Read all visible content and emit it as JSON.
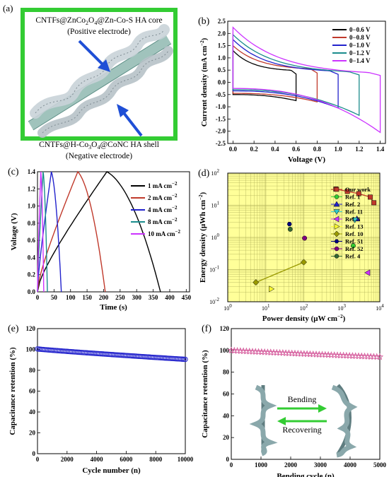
{
  "panels": {
    "a": {
      "label": "(a)",
      "top_text_1": "CNTFs@ZnCo",
      "top_sub_1": "2",
      "top_text_2": "O",
      "top_sub_2": "4",
      "top_text_3": "@Zn-Co-S HA core",
      "top_text_4": "(Positive electrode)",
      "bottom_text_1": "CNTFs@H-Co",
      "bottom_sub_1": "3",
      "bottom_text_2": "O",
      "bottom_sub_2": "4",
      "bottom_text_3": "@CoNC HA shell",
      "bottom_text_4": "(Negative electrode)",
      "colors": {
        "border": "#33cc33",
        "arrow": "#1f4fd6",
        "fiber": "#8fb8b0",
        "shell": "#c9d3d8"
      }
    },
    "f_inset": {
      "bending": "Bending",
      "recovering": "Recovering",
      "arrow_color": "#33cc33"
    }
  },
  "chart_data": [
    {
      "id": "b",
      "panel_label": "(b)",
      "type": "line",
      "xlabel": "Voltage (V)",
      "ylabel": "Current density (mA cm",
      "ylabel_sup": "−2",
      "ylabel_end": ")",
      "xlim": [
        -0.05,
        1.45
      ],
      "ylim": [
        -2.5,
        2.5
      ],
      "xticks": [
        "0.0",
        "0.2",
        "0.4",
        "0.6",
        "0.8",
        "1.0",
        "1.2",
        "1.4"
      ],
      "yticks": [
        "2.5",
        "2.0",
        "1.5",
        "1.0",
        "0.5",
        "0.0",
        "-0.5",
        "-1.0",
        "-1.5",
        "-2.0",
        "-2.5"
      ],
      "series": [
        {
          "name": "0−0.6 V",
          "color": "#000000",
          "vmax": 0.6,
          "top0": 1.3,
          "topEnd": 0.45,
          "bot0": -0.5,
          "botEnd": -0.75
        },
        {
          "name": "0−0.8 V",
          "color": "#c0392b",
          "vmax": 0.8,
          "top0": 1.5,
          "topEnd": 0.5,
          "bot0": -0.45,
          "botEnd": -0.8
        },
        {
          "name": "0−1.0 V",
          "color": "#2222cc",
          "vmax": 1.0,
          "top0": 1.75,
          "topEnd": 0.4,
          "bot0": -0.35,
          "botEnd": -1.05
        },
        {
          "name": "0−1.2 V",
          "color": "#1a8c8c",
          "vmax": 1.2,
          "top0": 1.95,
          "topEnd": 0.35,
          "bot0": -0.3,
          "botEnd": -1.35
        },
        {
          "name": "0−1.4 V",
          "color": "#cc33ff",
          "vmax": 1.4,
          "top0": 2.25,
          "topEnd": 0.3,
          "bot0": -0.25,
          "botEnd": -2.05
        }
      ]
    },
    {
      "id": "c",
      "panel_label": "(c)",
      "type": "line",
      "xlabel": "Time (s)",
      "ylabel": "Voltage (V)",
      "xlim": [
        0,
        460
      ],
      "ylim": [
        0,
        1.4
      ],
      "xticks": [
        "0",
        "50",
        "100",
        "150",
        "200",
        "250",
        "300",
        "350",
        "400",
        "450"
      ],
      "yticks": [
        "0.0",
        "0.2",
        "0.4",
        "0.6",
        "0.8",
        "1.0",
        "1.2",
        "1.4"
      ],
      "series": [
        {
          "name": "1 mA cm",
          "sup": "−2",
          "color": "#000000",
          "t_peak": 210,
          "t_end": 372
        },
        {
          "name": "2 mA cm",
          "sup": "−2",
          "color": "#c0392b",
          "t_peak": 122,
          "t_end": 205
        },
        {
          "name": "4 mA cm",
          "sup": "−2",
          "color": "#2222cc",
          "t_peak": 42,
          "t_end": 72
        },
        {
          "name": "8 mA cm",
          "sup": "−2",
          "color": "#1a8c8c",
          "t_peak": 17,
          "t_end": 30
        },
        {
          "name": "10 mA cm",
          "sup": "−2",
          "color": "#cc33ff",
          "t_peak": 10,
          "t_end": 19
        }
      ]
    },
    {
      "id": "d",
      "panel_label": "(d)",
      "type": "scatter",
      "xscale": "log",
      "yscale": "log",
      "xlabel": "Power density (μW cm",
      "xlabel_sup": "−2",
      "xlabel_end": ")",
      "ylabel": "Energy density (μWh cm",
      "ylabel_sup": "−2",
      "ylabel_end": ")",
      "xlim_exp": [
        0,
        4
      ],
      "ylim_exp": [
        -2,
        2
      ],
      "xticks": [
        {
          "b": "10",
          "e": "0"
        },
        {
          "b": "10",
          "e": "1"
        },
        {
          "b": "10",
          "e": "2"
        },
        {
          "b": "10",
          "e": "3"
        },
        {
          "b": "10",
          "e": "4"
        }
      ],
      "yticks": [
        {
          "b": "10",
          "e": "2"
        },
        {
          "b": "10",
          "e": "1"
        },
        {
          "b": "10",
          "e": "0"
        },
        {
          "b": "10",
          "e": "-1"
        },
        {
          "b": "10",
          "e": "-2"
        }
      ],
      "background": "#ffff99",
      "series": [
        {
          "name": "Our work",
          "color": "#c0392b",
          "marker": "square",
          "line": true,
          "points": [
            [
              700,
              32
            ],
            [
              1400,
              27
            ],
            [
              2800,
              23
            ],
            [
              5600,
              18
            ],
            [
              7000,
              12
            ]
          ]
        },
        {
          "name": "Ref. 1",
          "color": "#33cc33",
          "marker": "circle",
          "points": [
            [
              2000,
              0.55
            ]
          ]
        },
        {
          "name": "Ref. 2",
          "color": "#2222cc",
          "marker": "triangle-up",
          "points": [
            [
              2500,
              3.8
            ]
          ]
        },
        {
          "name": "Ref. 11",
          "color": "#33cccc",
          "marker": "triangle-down",
          "points": [
            [
              2200,
              3.5
            ]
          ]
        },
        {
          "name": "Ref. 3",
          "color": "#cc33ff",
          "marker": "triangle-left",
          "points": [
            [
              4800,
              0.08
            ]
          ]
        },
        {
          "name": "Ref. 13",
          "color": "#ffff33",
          "marker": "triangle-right",
          "points": [
            [
              14,
              0.025
            ]
          ]
        },
        {
          "name": "Ref. 10",
          "color": "#999900",
          "marker": "diamond",
          "line": true,
          "points": [
            [
              5.5,
              0.04
            ],
            [
              100,
              0.17
            ]
          ]
        },
        {
          "name": "Ref. 51",
          "color": "#000080",
          "marker": "hexagon",
          "points": [
            [
              42,
              2.6
            ]
          ]
        },
        {
          "name": "Ref. 52",
          "color": "#800080",
          "marker": "circle",
          "points": [
            [
              105,
              0.95
            ]
          ]
        },
        {
          "name": "Ref. 4",
          "color": "#336633",
          "marker": "circle",
          "points": [
            [
              44,
              1.8
            ]
          ]
        }
      ]
    },
    {
      "id": "e",
      "panel_label": "(e)",
      "type": "scatter",
      "xlabel": "Cycle number (n)",
      "ylabel": "Capacitance retention (%)",
      "xlim": [
        0,
        10000
      ],
      "ylim": [
        0,
        120
      ],
      "xticks": [
        "0",
        "2000",
        "4000",
        "6000",
        "8000",
        "10000"
      ],
      "yticks": [
        "0",
        "20",
        "40",
        "60",
        "80",
        "100",
        "120"
      ],
      "series": [
        {
          "name": "",
          "color": "#2222cc",
          "marker": "open-circle",
          "start": 100.5,
          "end": 90.5,
          "count": 100
        }
      ]
    },
    {
      "id": "f",
      "panel_label": "(f)",
      "type": "scatter",
      "xlabel": "Bending cycle (n)",
      "ylabel": "Capacitance retention (%)",
      "xlim": [
        0,
        5000
      ],
      "ylim": [
        0,
        120
      ],
      "xticks": [
        "0",
        "1000",
        "2000",
        "3000",
        "4000",
        "5000"
      ],
      "yticks": [
        "0",
        "20",
        "40",
        "60",
        "80",
        "100",
        "120"
      ],
      "series": [
        {
          "name": "",
          "color": "#d4589a",
          "marker": "open-star",
          "start": 100,
          "end": 94,
          "count": 50
        }
      ]
    }
  ]
}
